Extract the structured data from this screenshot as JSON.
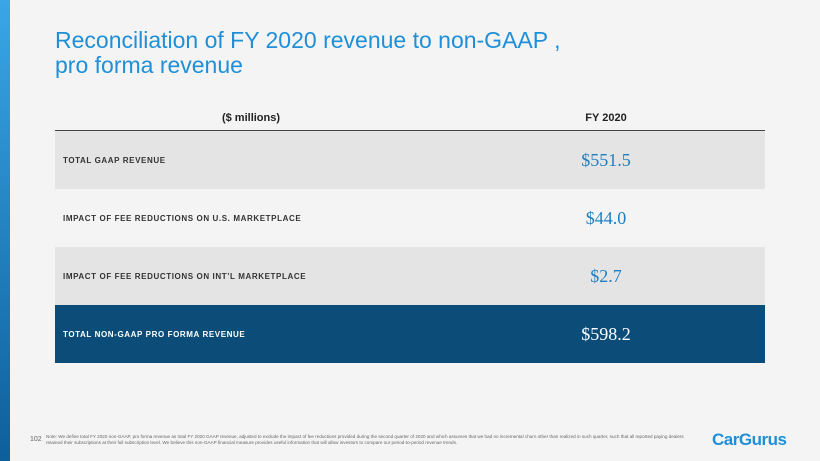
{
  "header": {
    "title": [
      "Reconciliation of FY 2020 revenue to non-GAAP ,",
      "pro forma revenue"
    ]
  },
  "table": {
    "columns": [
      "($ millions)",
      "FY 2020"
    ],
    "rows": [
      [
        "TOTAL GAAP REVENUE",
        "$551.5"
      ],
      [
        "IMPACT OF FEE REDUCTIONS ON U.S. MARKETPLACE",
        "$44.0"
      ],
      [
        "IMPACT OF FEE REDUCTIONS ON INT’L MARKETPLACE",
        "$2.7"
      ],
      [
        "TOTAL NON-GAAP PRO FORMA REVENUE",
        "$598.2"
      ]
    ]
  },
  "footer": {
    "page": "102",
    "note": "Note: We define total FY 2020 non-GAAP, pro forma revenue as total FY 2020 GAAP revenue, adjusted to exclude the impact of fee reductions provided during the second quarter of 2020 and which assumes that we had no incremental churn other than realized in such quarter, such that all reported paying dealers retained their subscriptions at their full subscription level. We believe this non-GAAP financial measure provides useful information that will allow investors to compare our period-to-period revenue trends.",
    "logo": "CarGurus"
  }
}
